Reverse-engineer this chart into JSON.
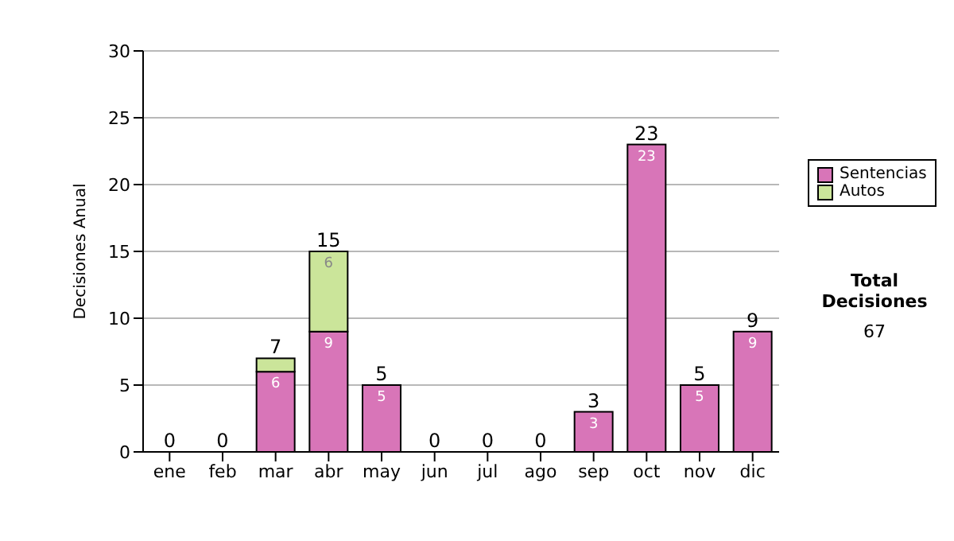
{
  "chart_data": {
    "type": "bar",
    "stacked": true,
    "ylabel": "Decisiones Anual",
    "categories": [
      "ene",
      "feb",
      "mar",
      "abr",
      "may",
      "jun",
      "jul",
      "ago",
      "sep",
      "oct",
      "nov",
      "dic"
    ],
    "series": [
      {
        "name": "Sentencias",
        "color": "#d875b8",
        "values": [
          0,
          0,
          6,
          9,
          5,
          0,
          0,
          0,
          3,
          23,
          5,
          9
        ],
        "value_labels": [
          null,
          null,
          "6",
          "9",
          "5",
          null,
          null,
          null,
          "3",
          "23",
          "5",
          "9"
        ]
      },
      {
        "name": "Autos",
        "color": "#cbe59a",
        "values": [
          0,
          0,
          1,
          6,
          0,
          0,
          0,
          0,
          0,
          0,
          0,
          0
        ],
        "value_labels": [
          null,
          null,
          null,
          "6",
          null,
          null,
          null,
          null,
          null,
          null,
          null,
          null
        ]
      }
    ],
    "totals": [
      "0",
      "0",
      "7",
      "15",
      "5",
      "0",
      "0",
      "0",
      "3",
      "23",
      "5",
      "9"
    ],
    "ylim": [
      0,
      30
    ],
    "yticks": [
      0,
      5,
      10,
      15,
      20,
      25,
      30
    ],
    "grid": "y",
    "legend": "right",
    "annotations": [
      "Total Decisiones",
      "67"
    ]
  }
}
